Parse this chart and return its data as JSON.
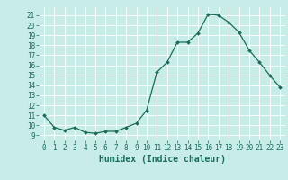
{
  "x": [
    0,
    1,
    2,
    3,
    4,
    5,
    6,
    7,
    8,
    9,
    10,
    11,
    12,
    13,
    14,
    15,
    16,
    17,
    18,
    19,
    20,
    21,
    22,
    23
  ],
  "y": [
    11,
    9.8,
    9.5,
    9.8,
    9.3,
    9.2,
    9.4,
    9.4,
    9.8,
    10.2,
    11.5,
    15.3,
    16.3,
    18.3,
    18.3,
    19.2,
    21.1,
    21.0,
    20.3,
    19.3,
    17.5,
    16.3,
    15.0,
    13.8
  ],
  "xlim": [
    -0.5,
    23.5
  ],
  "ylim": [
    8.5,
    21.8
  ],
  "yticks": [
    9,
    10,
    11,
    12,
    13,
    14,
    15,
    16,
    17,
    18,
    19,
    20,
    21
  ],
  "xticks": [
    0,
    1,
    2,
    3,
    4,
    5,
    6,
    7,
    8,
    9,
    10,
    11,
    12,
    13,
    14,
    15,
    16,
    17,
    18,
    19,
    20,
    21,
    22,
    23
  ],
  "xlabel": "Humidex (Indice chaleur)",
  "line_color": "#1a6b5a",
  "marker_color": "#1a6b5a",
  "bg_color": "#c8ede8",
  "grid_color": "#ffffff",
  "tick_fontsize": 5.5,
  "label_fontsize": 7.0
}
